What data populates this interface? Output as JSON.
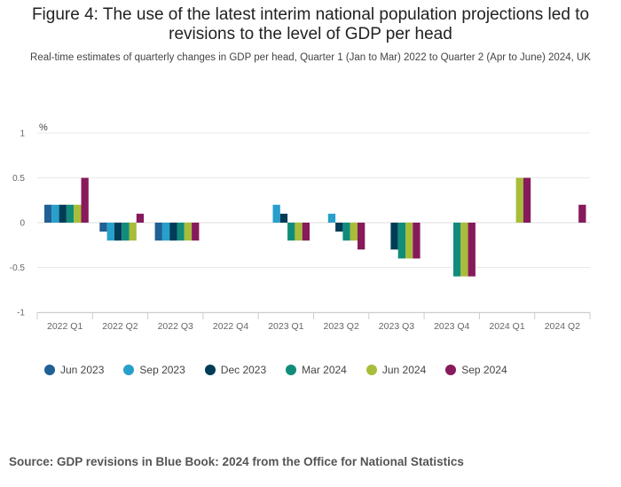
{
  "header": {
    "title": "Figure 4: The use of the latest interim national population projections led to revisions to the level of GDP per head",
    "subtitle": "Real-time estimates of quarterly changes in GDP per head, Quarter 1 (Jan to Mar) 2022 to Quarter 2 (Apr to June) 2024, UK"
  },
  "footer": {
    "source": "Source: GDP revisions in Blue Book: 2024 from the Office for National Statistics"
  },
  "chart_data": {
    "type": "bar",
    "title": "Figure 4: The use of the latest interim national population projections led to revisions to the level of GDP per head",
    "subtitle": "Real-time estimates of quarterly changes in GDP per head, Quarter 1 (Jan to Mar) 2022 to Quarter 2 (Apr to June) 2024, UK",
    "ylabel": "%",
    "xlabel": "",
    "ylim": [
      -1,
      1
    ],
    "yticks": [
      1,
      0.5,
      0,
      -0.5,
      -1
    ],
    "grid": true,
    "legend_position": "bottom",
    "categories": [
      "2022 Q1",
      "2022 Q2",
      "2022 Q3",
      "2022 Q4",
      "2023 Q1",
      "2023 Q2",
      "2023 Q3",
      "2023 Q4",
      "2024 Q1",
      "2024 Q2"
    ],
    "series": [
      {
        "name": "Jun 2023",
        "color": "#206095",
        "values": [
          0.2,
          -0.1,
          -0.2,
          null,
          null,
          null,
          null,
          null,
          null,
          null
        ]
      },
      {
        "name": "Sep 2023",
        "color": "#27a0cc",
        "values": [
          0.2,
          -0.2,
          -0.2,
          null,
          0.2,
          0.1,
          null,
          null,
          null,
          null
        ]
      },
      {
        "name": "Dec 2023",
        "color": "#003c57",
        "values": [
          0.2,
          -0.2,
          -0.2,
          null,
          0.1,
          -0.1,
          -0.3,
          null,
          null,
          null
        ]
      },
      {
        "name": "Mar 2024",
        "color": "#118c7b",
        "values": [
          0.2,
          -0.2,
          -0.2,
          null,
          -0.2,
          -0.2,
          -0.4,
          -0.6,
          null,
          null
        ]
      },
      {
        "name": "Jun 2024",
        "color": "#a8bd3a",
        "values": [
          0.2,
          -0.2,
          -0.2,
          null,
          -0.2,
          -0.2,
          -0.4,
          -0.6,
          0.5,
          null
        ]
      },
      {
        "name": "Sep 2024",
        "color": "#871a5b",
        "values": [
          0.5,
          0.1,
          -0.2,
          null,
          -0.2,
          -0.3,
          -0.4,
          -0.6,
          0.5,
          0.2
        ]
      }
    ]
  }
}
